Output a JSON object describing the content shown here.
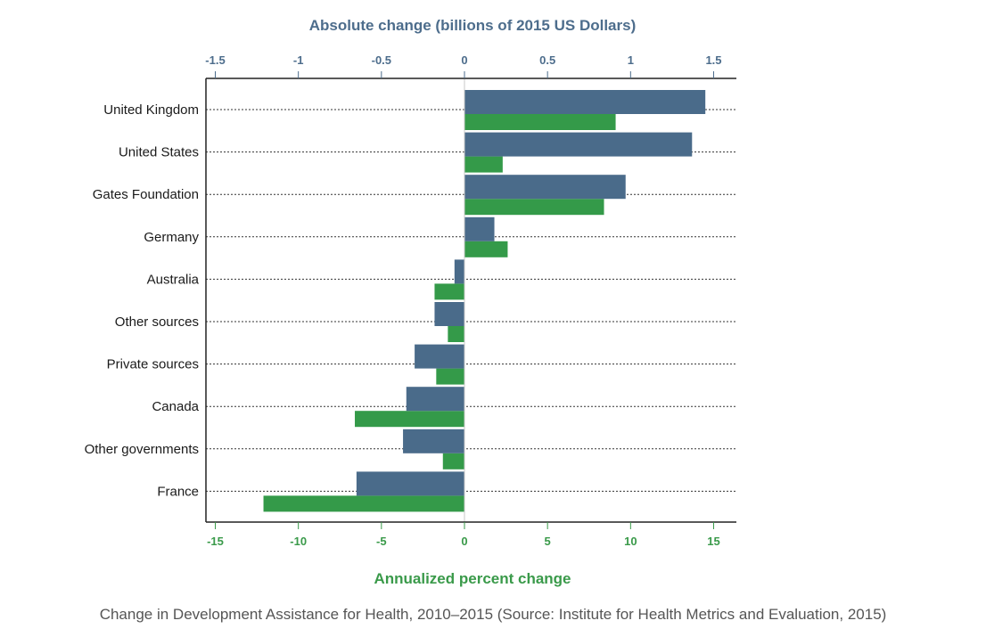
{
  "caption": "Change in Development Assistance for Health, 2010–2015 (Source: Institute for Health Metrics and Evaluation, 2015)",
  "chart_data": {
    "type": "bar",
    "orientation": "horizontal",
    "categories": [
      "United Kingdom",
      "United States",
      "Gates Foundation",
      "Germany",
      "Australia",
      "Other sources",
      "Private sources",
      "Canada",
      "Other governments",
      "France"
    ],
    "series": [
      {
        "axis": "top",
        "color": "#4a6b8a",
        "values": [
          1.45,
          1.37,
          0.97,
          0.18,
          -0.06,
          -0.18,
          -0.3,
          -0.35,
          -0.37,
          -0.65
        ]
      },
      {
        "axis": "bottom",
        "color": "#349a49",
        "values": [
          9.1,
          2.3,
          8.4,
          2.6,
          -1.8,
          -1.0,
          -1.7,
          -6.6,
          -1.3,
          -12.1
        ]
      }
    ],
    "top_axis": {
      "label": "Absolute change (billions of 2015 US Dollars)",
      "range": [
        -1.5,
        1.5
      ],
      "ticks": [
        "-1.5",
        "-1",
        "-0.5",
        "0",
        "0.5",
        "1",
        "1.5"
      ],
      "tick_values": [
        -1.5,
        -1,
        -0.5,
        0,
        0.5,
        1,
        1.5
      ]
    },
    "bottom_axis": {
      "label": "Annualized percent change",
      "range": [
        -15,
        15
      ],
      "ticks": [
        "-15",
        "-10",
        "-5",
        "0",
        "5",
        "10",
        "15"
      ],
      "tick_values": [
        -15,
        -10,
        -5,
        0,
        5,
        10,
        15
      ]
    },
    "grid": "dotted horizontal lines per category",
    "legend": "none"
  }
}
